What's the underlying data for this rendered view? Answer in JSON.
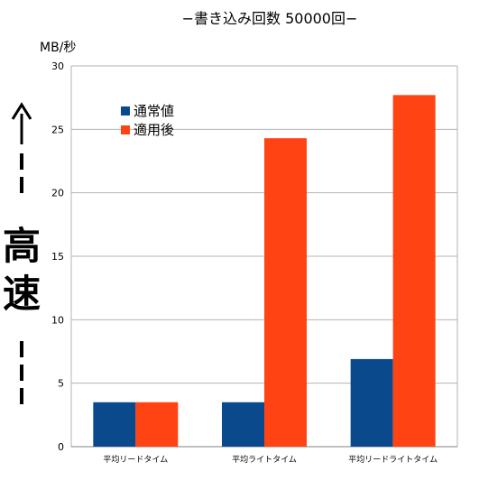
{
  "chart_data": {
    "type": "bar",
    "title": "−書き込み回数 50000回−",
    "ylabel": "MB/秒",
    "side_label": "高速",
    "ylim": [
      0,
      30
    ],
    "yticks": [
      0,
      5,
      10,
      15,
      20,
      25,
      30
    ],
    "grid": true,
    "legend_position": "top-left",
    "categories": [
      "平均リードタイム",
      "平均ライトタイム",
      "平均リードライトタイム"
    ],
    "series": [
      {
        "name": "通常値",
        "color": "#0a4a8c",
        "values": [
          3.5,
          3.5,
          6.9
        ]
      },
      {
        "name": "適用後",
        "color": "#ff4312",
        "values": [
          3.5,
          24.3,
          27.7
        ]
      }
    ]
  }
}
